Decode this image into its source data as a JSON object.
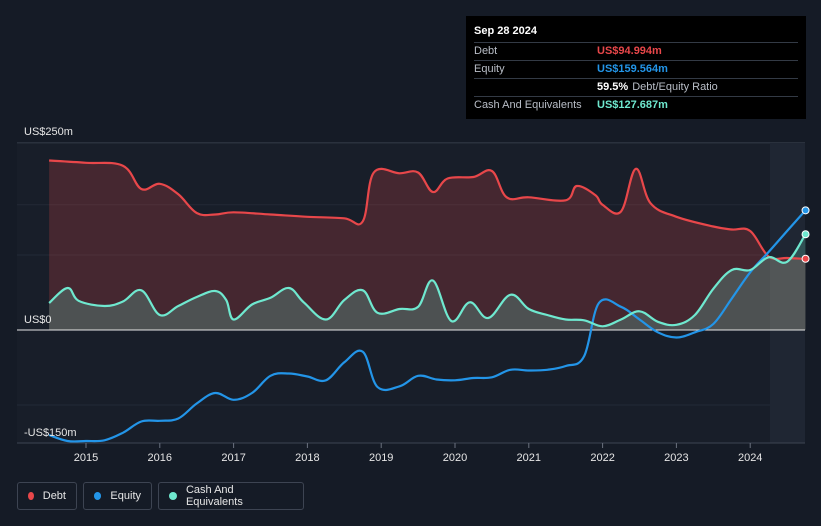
{
  "tooltip": {
    "date": "Sep 28 2024",
    "debt_label": "Debt",
    "debt_value": "US$94.994m",
    "equity_label": "Equity",
    "equity_value": "US$159.564m",
    "ratio_value": "59.5%",
    "ratio_label": "Debt/Equity Ratio",
    "cash_label": "Cash And Equivalents",
    "cash_value": "US$127.687m"
  },
  "legend": {
    "debt": "Debt",
    "equity": "Equity",
    "cash": "Cash And Equivalents"
  },
  "colors": {
    "debt": "#e8474a",
    "equity": "#2395e8",
    "cash": "#6fe8cf",
    "background": "#151b26"
  },
  "chart_data": {
    "type": "area",
    "y_unit": "US$m",
    "ylim": [
      -150,
      250
    ],
    "y_tick_labels": [
      {
        "value": 250,
        "label": "US$250m"
      },
      {
        "value": 0,
        "label": "US$0"
      },
      {
        "value": -150,
        "label": "-US$150m"
      }
    ],
    "x_ticks": [
      2015,
      2016,
      2017,
      2018,
      2019,
      2020,
      2021,
      2022,
      2023,
      2024
    ],
    "xlim": [
      2014.5,
      2024.75
    ],
    "series": [
      {
        "name": "Debt",
        "points": [
          [
            2014.5,
            226
          ],
          [
            2015.0,
            223
          ],
          [
            2015.5,
            219
          ],
          [
            2015.75,
            188
          ],
          [
            2016.0,
            195
          ],
          [
            2016.25,
            181
          ],
          [
            2016.5,
            156
          ],
          [
            2016.75,
            154
          ],
          [
            2017.0,
            157
          ],
          [
            2017.5,
            154
          ],
          [
            2018.0,
            151
          ],
          [
            2018.5,
            149
          ],
          [
            2018.75,
            145
          ],
          [
            2018.9,
            210
          ],
          [
            2019.25,
            209
          ],
          [
            2019.5,
            210
          ],
          [
            2019.7,
            184
          ],
          [
            2019.9,
            202
          ],
          [
            2020.25,
            204
          ],
          [
            2020.5,
            212
          ],
          [
            2020.7,
            177
          ],
          [
            2021.0,
            177
          ],
          [
            2021.5,
            173
          ],
          [
            2021.65,
            192
          ],
          [
            2021.9,
            180
          ],
          [
            2022.0,
            167
          ],
          [
            2022.25,
            158
          ],
          [
            2022.45,
            215
          ],
          [
            2022.65,
            169
          ],
          [
            2023.0,
            151
          ],
          [
            2023.5,
            138
          ],
          [
            2023.75,
            134
          ],
          [
            2024.0,
            132
          ],
          [
            2024.25,
            98
          ],
          [
            2024.5,
            96
          ],
          [
            2024.75,
            95
          ]
        ]
      },
      {
        "name": "Equity",
        "points": [
          [
            2014.5,
            -140
          ],
          [
            2014.75,
            -148
          ],
          [
            2015.0,
            -148
          ],
          [
            2015.25,
            -147
          ],
          [
            2015.5,
            -137
          ],
          [
            2015.75,
            -122
          ],
          [
            2016.0,
            -121
          ],
          [
            2016.25,
            -118
          ],
          [
            2016.5,
            -98
          ],
          [
            2016.75,
            -84
          ],
          [
            2017.0,
            -93
          ],
          [
            2017.25,
            -84
          ],
          [
            2017.5,
            -61
          ],
          [
            2017.75,
            -58
          ],
          [
            2018.0,
            -62
          ],
          [
            2018.25,
            -67
          ],
          [
            2018.5,
            -43
          ],
          [
            2018.75,
            -29
          ],
          [
            2018.95,
            -76
          ],
          [
            2019.25,
            -75
          ],
          [
            2019.5,
            -61
          ],
          [
            2019.75,
            -66
          ],
          [
            2020.0,
            -67
          ],
          [
            2020.25,
            -64
          ],
          [
            2020.5,
            -63
          ],
          [
            2020.75,
            -53
          ],
          [
            2021.0,
            -54
          ],
          [
            2021.25,
            -53
          ],
          [
            2021.5,
            -48
          ],
          [
            2021.75,
            -35
          ],
          [
            2021.95,
            36
          ],
          [
            2022.25,
            31
          ],
          [
            2022.5,
            14
          ],
          [
            2022.75,
            -3
          ],
          [
            2023.0,
            -10
          ],
          [
            2023.25,
            -3
          ],
          [
            2023.5,
            8
          ],
          [
            2023.75,
            42
          ],
          [
            2024.0,
            77
          ],
          [
            2024.25,
            104
          ],
          [
            2024.5,
            132
          ],
          [
            2024.75,
            159.564
          ]
        ]
      },
      {
        "name": "Cash And Equivalents",
        "points": [
          [
            2014.5,
            36
          ],
          [
            2014.75,
            56
          ],
          [
            2014.9,
            39
          ],
          [
            2015.25,
            32
          ],
          [
            2015.5,
            38
          ],
          [
            2015.75,
            53
          ],
          [
            2016.0,
            20
          ],
          [
            2016.25,
            32
          ],
          [
            2016.5,
            44
          ],
          [
            2016.75,
            52
          ],
          [
            2016.9,
            40
          ],
          [
            2017.0,
            14
          ],
          [
            2017.25,
            34
          ],
          [
            2017.5,
            43
          ],
          [
            2017.75,
            56
          ],
          [
            2017.95,
            37
          ],
          [
            2018.25,
            14
          ],
          [
            2018.5,
            40
          ],
          [
            2018.75,
            53
          ],
          [
            2018.95,
            23
          ],
          [
            2019.25,
            28
          ],
          [
            2019.5,
            31
          ],
          [
            2019.7,
            66
          ],
          [
            2019.95,
            12
          ],
          [
            2020.2,
            37
          ],
          [
            2020.45,
            16
          ],
          [
            2020.75,
            47
          ],
          [
            2021.0,
            28
          ],
          [
            2021.25,
            20
          ],
          [
            2021.5,
            14
          ],
          [
            2021.75,
            13
          ],
          [
            2022.0,
            5
          ],
          [
            2022.25,
            14
          ],
          [
            2022.5,
            25
          ],
          [
            2022.75,
            11
          ],
          [
            2023.0,
            7
          ],
          [
            2023.25,
            20
          ],
          [
            2023.5,
            55
          ],
          [
            2023.75,
            80
          ],
          [
            2024.0,
            80
          ],
          [
            2024.25,
            97
          ],
          [
            2024.5,
            91
          ],
          [
            2024.75,
            127.687
          ]
        ]
      }
    ]
  }
}
